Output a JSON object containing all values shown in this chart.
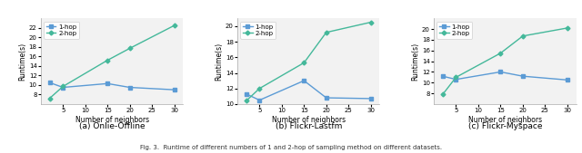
{
  "x_vals": [
    2,
    5,
    15,
    20,
    30
  ],
  "subplot_a": {
    "title": "(a) Onlie-Offline",
    "hop1": [
      10.5,
      9.5,
      10.3,
      9.5,
      9.0
    ],
    "hop2": [
      7.2,
      9.7,
      15.2,
      17.7,
      22.5
    ],
    "ylim": [
      6,
      24
    ],
    "yticks": [
      8,
      10,
      12,
      14,
      16,
      18,
      20,
      22
    ]
  },
  "subplot_b": {
    "title": "(b) Flickr-Lastfm",
    "hop1": [
      11.3,
      10.5,
      13.0,
      10.8,
      10.7
    ],
    "hop2": [
      10.4,
      12.0,
      15.3,
      19.2,
      20.5
    ],
    "ylim": [
      10,
      21
    ],
    "yticks": [
      10,
      12,
      14,
      16,
      18,
      20
    ]
  },
  "subplot_c": {
    "title": "(c) Flickr-Myspace",
    "hop1": [
      11.2,
      10.6,
      12.0,
      11.2,
      10.5
    ],
    "hop2": [
      7.8,
      11.0,
      15.5,
      18.7,
      20.2
    ],
    "ylim": [
      6,
      22
    ],
    "yticks": [
      8,
      10,
      12,
      14,
      16,
      18,
      20
    ]
  },
  "color_hop1": "#5B9BD5",
  "color_hop2": "#44B89A",
  "xlabel": "Number of neighbors",
  "ylabel": "Runtime(s)",
  "xticks": [
    5,
    10,
    15,
    20,
    25,
    30
  ],
  "figcaption": "Fig. 3.  Runtime of different numbers of 1 and 2-hop of sampling method on different datasets.",
  "bg_color": "#f2f2f2"
}
